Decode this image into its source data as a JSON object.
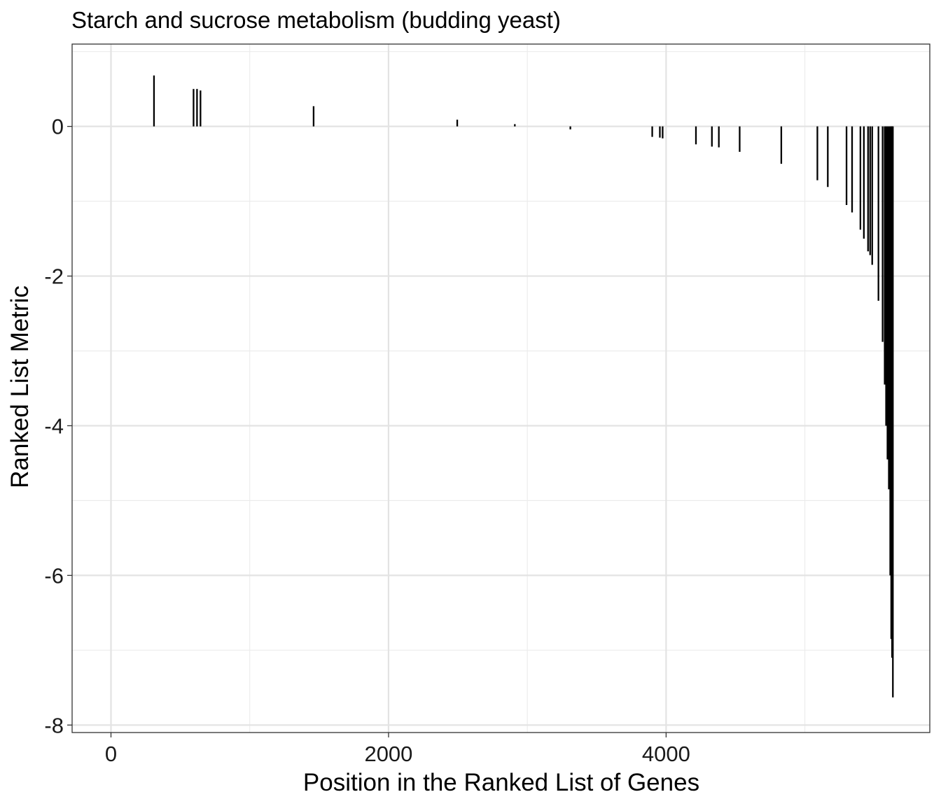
{
  "chart_data": {
    "type": "bar",
    "title": "Starch and sucrose metabolism (budding yeast)",
    "xlabel": "Position in the Ranked List of Genes",
    "ylabel": "Ranked List Metric",
    "xlim": [
      -280,
      5900
    ],
    "ylim": [
      -8.1,
      1.1
    ],
    "x_ticks": [
      0,
      2000,
      4000
    ],
    "x_tick_labels": [
      "0",
      "2000",
      "4000"
    ],
    "y_ticks": [
      0,
      -2,
      -4,
      -6,
      -8
    ],
    "y_tick_labels": [
      "0",
      "-2",
      "-4",
      "-6",
      "-8"
    ],
    "grid": true,
    "legend": "none",
    "bar_color": "#000000",
    "points": [
      {
        "x": 310,
        "y": 0.68
      },
      {
        "x": 595,
        "y": 0.5
      },
      {
        "x": 620,
        "y": 0.5
      },
      {
        "x": 645,
        "y": 0.48
      },
      {
        "x": 1460,
        "y": 0.27
      },
      {
        "x": 2495,
        "y": 0.09
      },
      {
        "x": 2910,
        "y": 0.03
      },
      {
        "x": 3310,
        "y": -0.04
      },
      {
        "x": 3900,
        "y": -0.14
      },
      {
        "x": 3955,
        "y": -0.15
      },
      {
        "x": 3975,
        "y": -0.16
      },
      {
        "x": 4215,
        "y": -0.24
      },
      {
        "x": 4330,
        "y": -0.27
      },
      {
        "x": 4380,
        "y": -0.28
      },
      {
        "x": 4530,
        "y": -0.34
      },
      {
        "x": 4830,
        "y": -0.5
      },
      {
        "x": 5090,
        "y": -0.72
      },
      {
        "x": 5165,
        "y": -0.81
      },
      {
        "x": 5300,
        "y": -1.05
      },
      {
        "x": 5340,
        "y": -1.15
      },
      {
        "x": 5400,
        "y": -1.38
      },
      {
        "x": 5425,
        "y": -1.5
      },
      {
        "x": 5455,
        "y": -1.67
      },
      {
        "x": 5470,
        "y": -1.72
      },
      {
        "x": 5485,
        "y": -1.85
      },
      {
        "x": 5530,
        "y": -2.33
      },
      {
        "x": 5560,
        "y": -2.88
      },
      {
        "x": 5575,
        "y": -3.45
      },
      {
        "x": 5585,
        "y": -4.0
      },
      {
        "x": 5595,
        "y": -4.45
      },
      {
        "x": 5605,
        "y": -4.85
      },
      {
        "x": 5615,
        "y": -6.0
      },
      {
        "x": 5622,
        "y": -6.85
      },
      {
        "x": 5628,
        "y": -7.1
      },
      {
        "x": 5634,
        "y": -7.63
      }
    ]
  }
}
